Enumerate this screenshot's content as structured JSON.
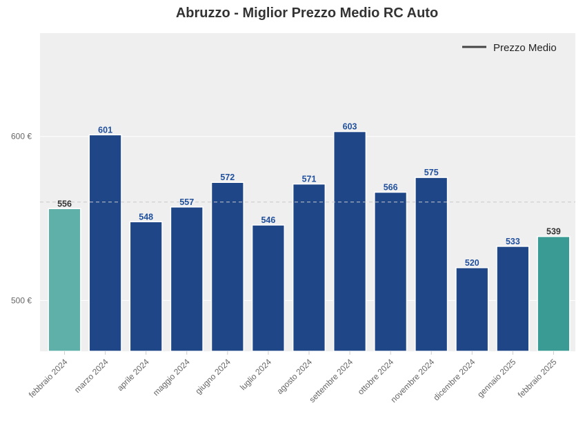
{
  "chart_data": {
    "type": "bar",
    "title": "Abruzzo - Miglior Prezzo Medio RC Auto",
    "xlabel": "",
    "ylabel": "",
    "categories": [
      "febbraio 2024",
      "marzo 2024",
      "aprile 2024",
      "maggio 2024",
      "giugno 2024",
      "luglio 2024",
      "agosto 2024",
      "settembre 2024",
      "ottobre 2024",
      "novembre 2024",
      "dicembre 2024",
      "gennaio 2025",
      "febbraio 2025"
    ],
    "values": [
      556,
      601,
      548,
      557,
      572,
      546,
      571,
      603,
      566,
      575,
      520,
      533,
      539
    ],
    "value_labels": [
      "556",
      "601",
      "548",
      "557",
      "572",
      "546",
      "571",
      "603",
      "566",
      "575",
      "520",
      "533",
      "539"
    ],
    "ylim": [
      469,
      663
    ],
    "yticks": [
      500,
      600
    ],
    "ytick_labels": [
      "500 €",
      "600 €"
    ],
    "average_line": 560,
    "grid": true,
    "legend": {
      "position": "top-right",
      "entries": [
        {
          "label": "Prezzo Medio"
        }
      ]
    },
    "colors": {
      "background": "#efefef",
      "bar_main": "#1f4788",
      "bar_first": "#5fb0a8",
      "bar_last": "#3a9b94",
      "label_main": "#1f4f9c",
      "label_edge": "#333333",
      "average_line": "#c8c8c8",
      "legend_line": "#444444"
    }
  }
}
